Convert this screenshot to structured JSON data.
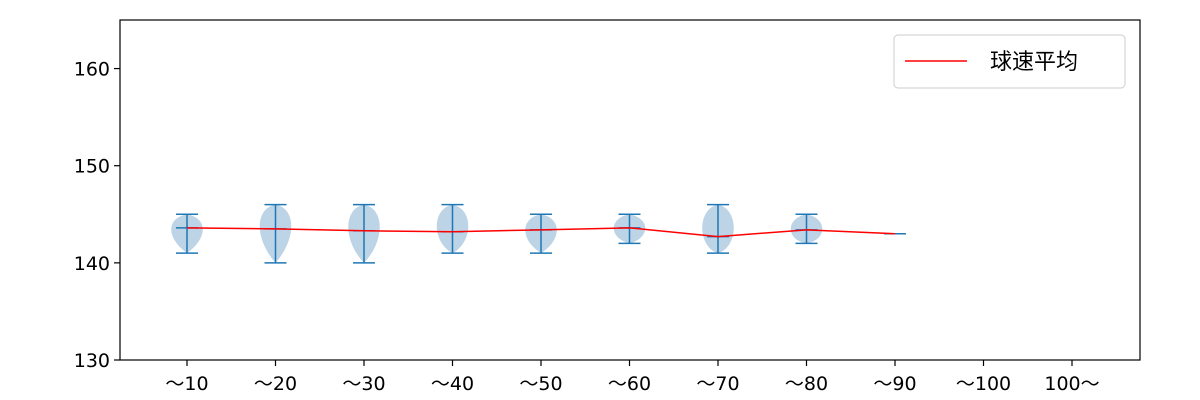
{
  "chart_data": {
    "type": "violin",
    "categories": [
      "〜10",
      "〜20",
      "〜30",
      "〜40",
      "〜50",
      "〜60",
      "〜70",
      "〜80",
      "〜90",
      "〜100",
      "100〜"
    ],
    "ylim": [
      130,
      165
    ],
    "yticks": [
      130,
      140,
      150,
      160
    ],
    "violins": [
      {
        "min": 141,
        "max": 145,
        "median": 143.6
      },
      {
        "min": 140,
        "max": 146,
        "median": 143.5
      },
      {
        "min": 140,
        "max": 146,
        "median": 143.3
      },
      {
        "min": 141,
        "max": 146,
        "median": 143.2
      },
      {
        "min": 141,
        "max": 145,
        "median": 143.4
      },
      {
        "min": 142,
        "max": 145,
        "median": 143.6
      },
      {
        "min": 141,
        "max": 146,
        "median": 142.7
      },
      {
        "min": 142,
        "max": 145,
        "median": 143.4
      },
      {
        "min": 143,
        "max": 143,
        "median": 143.0
      },
      null,
      null
    ],
    "series": [
      {
        "name": "球速平均",
        "color": "#ff0000",
        "values": [
          143.6,
          143.5,
          143.3,
          143.2,
          143.4,
          143.6,
          142.7,
          143.4,
          143.0,
          null,
          null
        ]
      }
    ],
    "legend": {
      "label": "球速平均",
      "position": "top-right"
    },
    "violin_color": "#1f77b4",
    "violin_fill": "#bcd4e6"
  }
}
